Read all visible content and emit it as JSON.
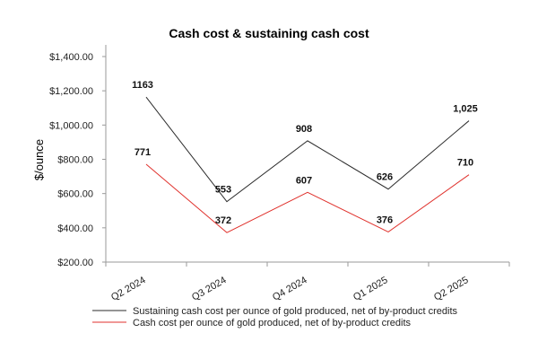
{
  "chart_data": {
    "type": "line",
    "title": "Cash cost & sustaining cash cost",
    "xlabel": "",
    "ylabel": "$/ounce",
    "categories": [
      "Q2 2024",
      "Q3 2024",
      "Q4 2024",
      "Q1 2025",
      "Q2 2025"
    ],
    "ylim": [
      200,
      1400
    ],
    "yticks": [
      200,
      400,
      600,
      800,
      1000,
      1200,
      1400
    ],
    "ytick_labels": [
      "$200.00",
      "$400.00",
      "$600.00",
      "$800.00",
      "$1,000.00",
      "$1,200.00",
      "$1,400.00"
    ],
    "grid": false,
    "legend_position": "bottom",
    "series": [
      {
        "name": "Sustaining cash cost per ounce of gold produced, net of by-product credits",
        "color": "#2b2b2b",
        "values": [
          1163,
          553,
          908,
          626,
          1025
        ],
        "labels": [
          "1163",
          "553",
          "908",
          "626",
          "1,025"
        ]
      },
      {
        "name": "Cash cost per ounce of gold produced, net of by-product credits",
        "color": "#e0322d",
        "values": [
          771,
          372,
          607,
          376,
          710
        ],
        "labels": [
          "771",
          "372",
          "607",
          "376",
          "710"
        ]
      }
    ]
  }
}
